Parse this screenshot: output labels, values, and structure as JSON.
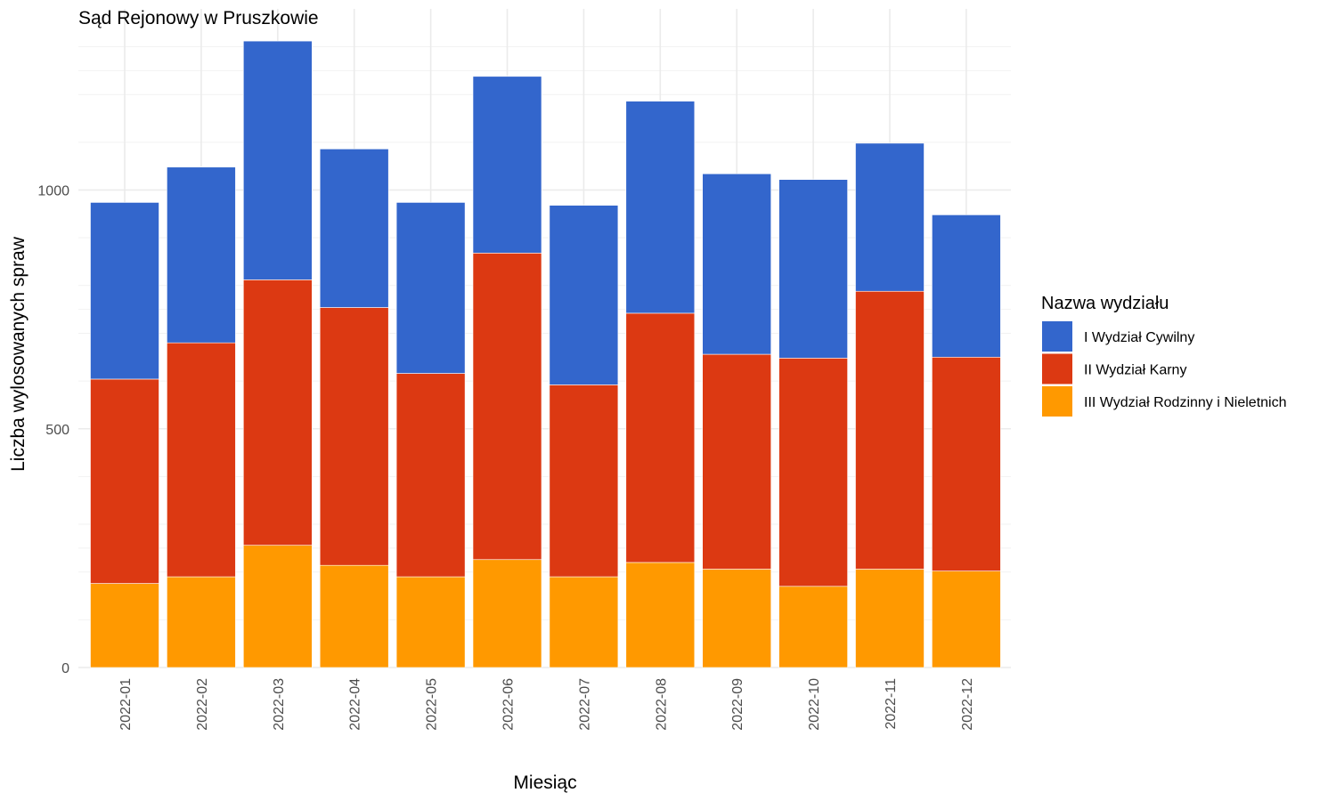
{
  "chart_data": {
    "type": "bar",
    "stacked": true,
    "title": "Sąd Rejonowy w Pruszkowie",
    "xlabel": "Miesiąc",
    "ylabel": "Liczba wylosowanych spraw",
    "ylim": [
      0,
      1320
    ],
    "y_ticks": [
      0,
      500,
      1000
    ],
    "grid": true,
    "legend": {
      "title": "Nazwa wydziału",
      "position": "right"
    },
    "categories": [
      "2022-01",
      "2022-02",
      "2022-03",
      "2022-04",
      "2022-05",
      "2022-06",
      "2022-07",
      "2022-08",
      "2022-09",
      "2022-10",
      "2022-11",
      "2022-12"
    ],
    "series": [
      {
        "name": "I Wydział Cywilny",
        "color": "#3366cc",
        "values": [
          370,
          368,
          500,
          332,
          358,
          370,
          376,
          444,
          378,
          374,
          310,
          298
        ]
      },
      {
        "name": "II Wydział Karny",
        "color": "#dc3912",
        "values": [
          428,
          490,
          556,
          540,
          426,
          642,
          402,
          522,
          450,
          478,
          582,
          448
        ]
      },
      {
        "name": "III Wydział Rodzinny i Nieletnich",
        "color": "#ff9900",
        "values": [
          176,
          190,
          256,
          214,
          190,
          226,
          190,
          220,
          206,
          170,
          206,
          202
        ]
      }
    ]
  }
}
